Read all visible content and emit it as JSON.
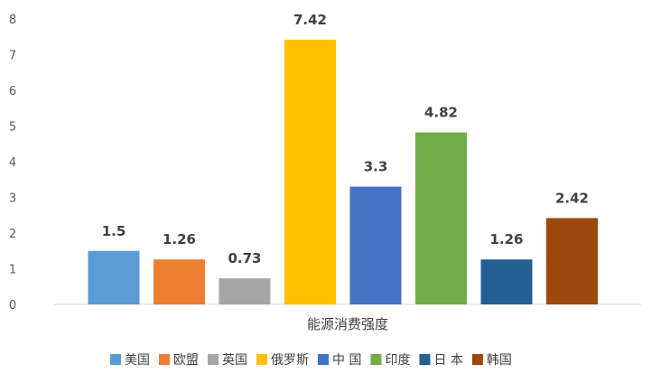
{
  "chart_data": {
    "type": "bar",
    "title": "",
    "xlabel": "能源消费强度",
    "ylabel": "",
    "ylim": [
      0,
      8
    ],
    "yticks": [
      0,
      1,
      2,
      3,
      4,
      5,
      6,
      7,
      8
    ],
    "grid": false,
    "legend": "bottom",
    "series": [
      {
        "name": "美国",
        "value": 1.5,
        "color": "#5B9BD5"
      },
      {
        "name": "欧盟",
        "value": 1.26,
        "color": "#ED7D31"
      },
      {
        "name": "英国",
        "value": 0.73,
        "color": "#A5A5A5"
      },
      {
        "name": "俄罗斯",
        "value": 7.42,
        "color": "#FFC000"
      },
      {
        "name": "中 国",
        "value": 3.3,
        "color": "#4472C4"
      },
      {
        "name": "印度",
        "value": 4.82,
        "color": "#70AD47"
      },
      {
        "name": "日 本",
        "value": 1.26,
        "color": "#255E91"
      },
      {
        "name": "韩国",
        "value": 2.42,
        "color": "#9E480E"
      }
    ]
  }
}
